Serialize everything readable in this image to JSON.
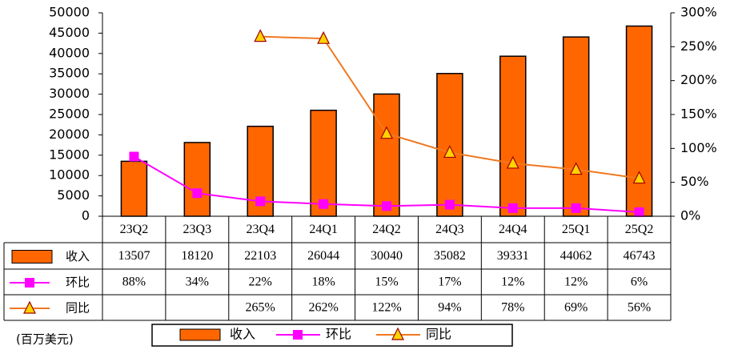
{
  "chart_data": {
    "type": "bar-line-table",
    "unit_note": "(百万美元)",
    "categories": [
      "23Q2",
      "23Q3",
      "23Q4",
      "24Q1",
      "24Q2",
      "24Q3",
      "24Q4",
      "25Q1",
      "25Q2"
    ],
    "series": [
      {
        "name": "收入",
        "type": "bar",
        "color": "#ff6600",
        "values": [
          13507,
          18120,
          22103,
          26044,
          30040,
          35082,
          39331,
          44062,
          46743
        ]
      },
      {
        "name": "环比",
        "type": "line",
        "axis": "y2",
        "color": "#ff00ff",
        "values": [
          88,
          34,
          22,
          18,
          15,
          17,
          12,
          12,
          6
        ],
        "value_labels": [
          "88%",
          "34%",
          "22%",
          "18%",
          "15%",
          "17%",
          "12%",
          "12%",
          "6%"
        ]
      },
      {
        "name": "同比",
        "type": "line",
        "axis": "y2",
        "color": "#f07820",
        "values": [
          null,
          null,
          265,
          262,
          122,
          94,
          78,
          69,
          56
        ],
        "value_labels": [
          null,
          null,
          "265%",
          "262%",
          "122%",
          "94%",
          "78%",
          "69%",
          "56%"
        ]
      }
    ],
    "ylim": [
      0,
      50000
    ],
    "yticks": [
      0,
      5000,
      10000,
      15000,
      20000,
      25000,
      30000,
      35000,
      40000,
      45000,
      50000
    ],
    "y2lim": [
      0,
      300
    ],
    "y2ticks": [
      {
        "value": 0,
        "label": "0%"
      },
      {
        "value": 50,
        "label": "50%"
      },
      {
        "value": 100,
        "label": "100%"
      },
      {
        "value": 150,
        "label": "150%"
      },
      {
        "value": 200,
        "label": "200%"
      },
      {
        "value": 250,
        "label": "250%"
      },
      {
        "value": 300,
        "label": "300%"
      }
    ]
  }
}
